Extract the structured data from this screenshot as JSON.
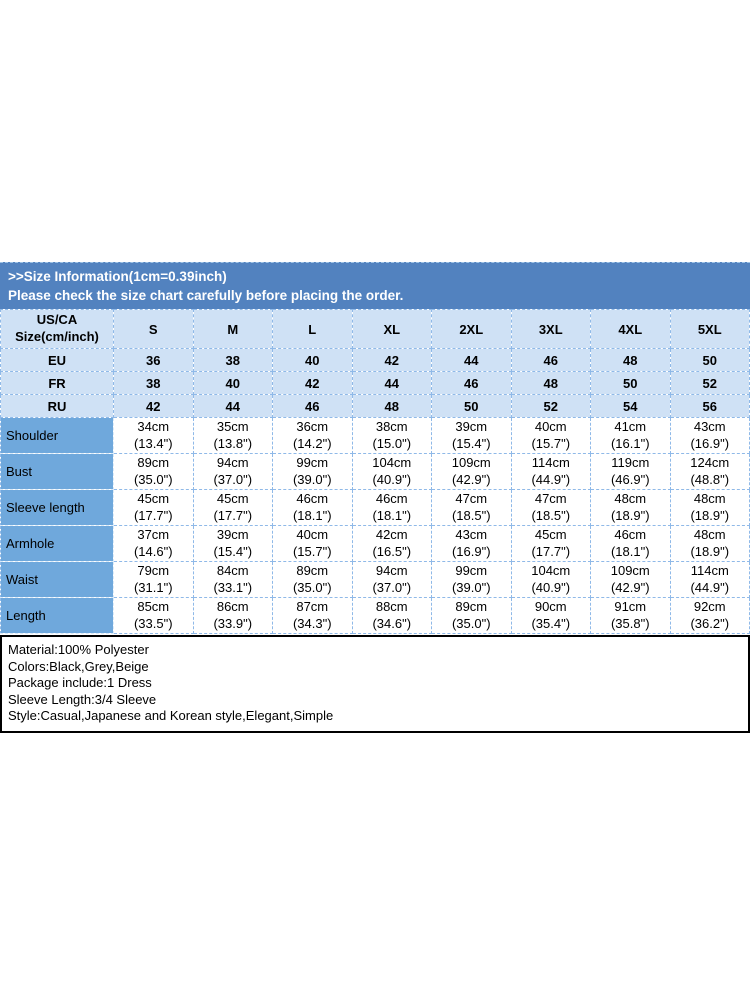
{
  "banner": {
    "title": ">>Size Information(1cm=0.39inch)",
    "subtitle": "Please check the size chart carefully before placing the order."
  },
  "size_table": {
    "corner": {
      "line1": "US/CA",
      "line2": "Size(cm/inch)"
    },
    "size_columns": [
      "S",
      "M",
      "L",
      "XL",
      "2XL",
      "3XL",
      "4XL",
      "5XL"
    ],
    "region_rows": [
      {
        "label": "EU",
        "values": [
          "36",
          "38",
          "40",
          "42",
          "44",
          "46",
          "48",
          "50"
        ]
      },
      {
        "label": "FR",
        "values": [
          "38",
          "40",
          "42",
          "44",
          "46",
          "48",
          "50",
          "52"
        ]
      },
      {
        "label": "RU",
        "values": [
          "42",
          "44",
          "46",
          "48",
          "50",
          "52",
          "54",
          "56"
        ]
      }
    ],
    "measurement_rows": [
      {
        "label": "Shoulder",
        "values": [
          {
            "cm": "34cm",
            "inch": "(13.4\")"
          },
          {
            "cm": "35cm",
            "inch": "(13.8\")"
          },
          {
            "cm": "36cm",
            "inch": "(14.2\")"
          },
          {
            "cm": "38cm",
            "inch": "(15.0\")"
          },
          {
            "cm": "39cm",
            "inch": "(15.4\")"
          },
          {
            "cm": "40cm",
            "inch": "(15.7\")"
          },
          {
            "cm": "41cm",
            "inch": "(16.1\")"
          },
          {
            "cm": "43cm",
            "inch": "(16.9\")"
          }
        ]
      },
      {
        "label": "Bust",
        "values": [
          {
            "cm": "89cm",
            "inch": "(35.0\")"
          },
          {
            "cm": "94cm",
            "inch": "(37.0\")"
          },
          {
            "cm": "99cm",
            "inch": "(39.0\")"
          },
          {
            "cm": "104cm",
            "inch": "(40.9\")"
          },
          {
            "cm": "109cm",
            "inch": "(42.9\")"
          },
          {
            "cm": "114cm",
            "inch": "(44.9\")"
          },
          {
            "cm": "119cm",
            "inch": "(46.9\")"
          },
          {
            "cm": "124cm",
            "inch": "(48.8\")"
          }
        ]
      },
      {
        "label": "Sleeve length",
        "values": [
          {
            "cm": "45cm",
            "inch": "(17.7\")"
          },
          {
            "cm": "45cm",
            "inch": "(17.7\")"
          },
          {
            "cm": "46cm",
            "inch": "(18.1\")"
          },
          {
            "cm": "46cm",
            "inch": "(18.1\")"
          },
          {
            "cm": "47cm",
            "inch": "(18.5\")"
          },
          {
            "cm": "47cm",
            "inch": "(18.5\")"
          },
          {
            "cm": "48cm",
            "inch": "(18.9\")"
          },
          {
            "cm": "48cm",
            "inch": "(18.9\")"
          }
        ]
      },
      {
        "label": "Armhole",
        "values": [
          {
            "cm": "37cm",
            "inch": "(14.6\")"
          },
          {
            "cm": "39cm",
            "inch": "(15.4\")"
          },
          {
            "cm": "40cm",
            "inch": "(15.7\")"
          },
          {
            "cm": "42cm",
            "inch": "(16.5\")"
          },
          {
            "cm": "43cm",
            "inch": "(16.9\")"
          },
          {
            "cm": "45cm",
            "inch": "(17.7\")"
          },
          {
            "cm": "46cm",
            "inch": "(18.1\")"
          },
          {
            "cm": "48cm",
            "inch": "(18.9\")"
          }
        ]
      },
      {
        "label": "Waist",
        "values": [
          {
            "cm": "79cm",
            "inch": "(31.1\")"
          },
          {
            "cm": "84cm",
            "inch": "(33.1\")"
          },
          {
            "cm": "89cm",
            "inch": "(35.0\")"
          },
          {
            "cm": "94cm",
            "inch": "(37.0\")"
          },
          {
            "cm": "99cm",
            "inch": "(39.0\")"
          },
          {
            "cm": "104cm",
            "inch": "(40.9\")"
          },
          {
            "cm": "109cm",
            "inch": "(42.9\")"
          },
          {
            "cm": "114cm",
            "inch": "(44.9\")"
          }
        ]
      },
      {
        "label": "Length",
        "values": [
          {
            "cm": "85cm",
            "inch": "(33.5\")"
          },
          {
            "cm": "86cm",
            "inch": "(33.9\")"
          },
          {
            "cm": "87cm",
            "inch": "(34.3\")"
          },
          {
            "cm": "88cm",
            "inch": "(34.6\")"
          },
          {
            "cm": "89cm",
            "inch": "(35.0\")"
          },
          {
            "cm": "90cm",
            "inch": "(35.4\")"
          },
          {
            "cm": "91cm",
            "inch": "(35.8\")"
          },
          {
            "cm": "92cm",
            "inch": "(36.2\")"
          }
        ]
      }
    ]
  },
  "product_details": {
    "lines": [
      "Material:100% Polyester",
      "Colors:Black,Grey,Beige",
      "Package include:1 Dress",
      "Sleeve Length:3/4 Sleeve",
      "Style:Casual,Japanese and Korean style,Elegant,Simple"
    ]
  },
  "colors": {
    "banner_bg": "#5282bf",
    "header_row_bg": "#cfe1f5",
    "label_column_bg": "#6fa8dc",
    "cell_border": "#8fb9e8",
    "details_border": "#000000",
    "banner_text": "#ffffff",
    "body_text": "#000000"
  }
}
